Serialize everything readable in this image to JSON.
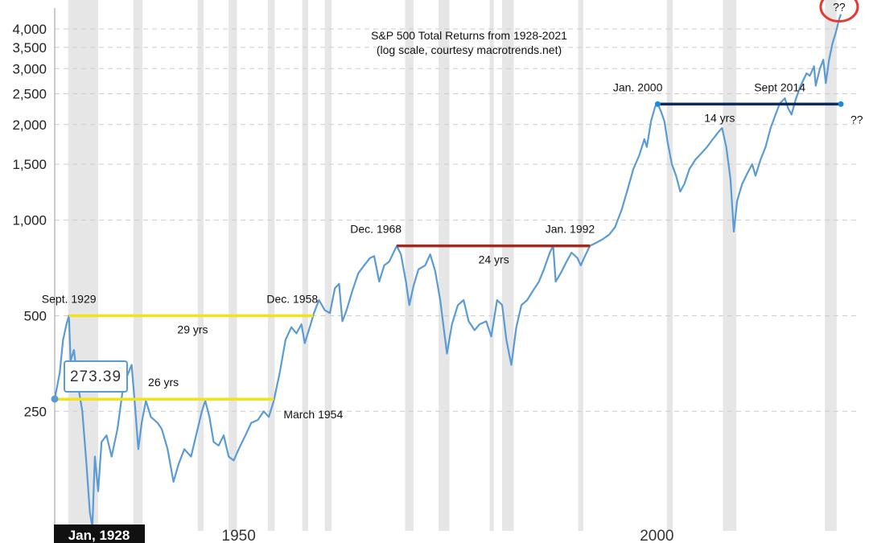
{
  "chart_data": {
    "type": "line",
    "title": "S&P 500 Total Returns from 1928-2021",
    "subtitle": "(log scale, courtesy macrotrends.net)",
    "scale": "log",
    "xlim": [
      1928,
      2022
    ],
    "ylim": [
      105,
      4600
    ],
    "y_ticks": [
      {
        "value": 250,
        "label": "250"
      },
      {
        "value": 500,
        "label": "500"
      },
      {
        "value": 1000,
        "label": "1,000"
      },
      {
        "value": 1500,
        "label": "1,500"
      },
      {
        "value": 2000,
        "label": "2,000"
      },
      {
        "value": 2500,
        "label": "2,500"
      },
      {
        "value": 3000,
        "label": "3,000"
      },
      {
        "value": 3500,
        "label": "3,500"
      },
      {
        "value": 4000,
        "label": "4,000"
      }
    ],
    "x_ticks": [
      {
        "value": 1950,
        "label": "1950"
      },
      {
        "value": 2000,
        "label": "2000"
      }
    ],
    "start_label": "Jan, 1928",
    "tooltip": {
      "x": 1928.0,
      "y": 273.39,
      "label": "273.39"
    },
    "recessions": [
      [
        1929.6,
        1933.2
      ],
      [
        1937.4,
        1938.5
      ],
      [
        1945.1,
        1945.8
      ],
      [
        1948.8,
        1949.8
      ],
      [
        1953.5,
        1954.3
      ],
      [
        1957.6,
        1958.3
      ],
      [
        1960.3,
        1961.1
      ],
      [
        1969.9,
        1970.9
      ],
      [
        1973.9,
        1975.2
      ],
      [
        1980.0,
        1980.5
      ],
      [
        1981.5,
        1982.9
      ],
      [
        1990.6,
        1991.2
      ],
      [
        2001.2,
        2001.9
      ],
      [
        2007.9,
        2009.5
      ],
      [
        2020.1,
        2021.5
      ]
    ],
    "series": [
      {
        "color": "#5b9bd5",
        "points": [
          [
            1928.0,
            273
          ],
          [
            1928.6,
            330
          ],
          [
            1929.0,
            420
          ],
          [
            1929.4,
            470
          ],
          [
            1929.7,
            500
          ],
          [
            1929.9,
            360
          ],
          [
            1930.3,
            390
          ],
          [
            1930.8,
            300
          ],
          [
            1931.3,
            250
          ],
          [
            1931.8,
            170
          ],
          [
            1932.2,
            120
          ],
          [
            1932.5,
            108
          ],
          [
            1932.8,
            180
          ],
          [
            1933.2,
            140
          ],
          [
            1933.6,
            200
          ],
          [
            1934.2,
            210
          ],
          [
            1934.8,
            180
          ],
          [
            1935.5,
            220
          ],
          [
            1936.2,
            300
          ],
          [
            1936.8,
            330
          ],
          [
            1937.2,
            350
          ],
          [
            1937.6,
            260
          ],
          [
            1938.0,
            190
          ],
          [
            1938.4,
            230
          ],
          [
            1938.9,
            270
          ],
          [
            1939.5,
            240
          ],
          [
            1940.3,
            230
          ],
          [
            1940.8,
            220
          ],
          [
            1941.5,
            190
          ],
          [
            1942.2,
            150
          ],
          [
            1942.8,
            170
          ],
          [
            1943.5,
            190
          ],
          [
            1944.3,
            180
          ],
          [
            1945.0,
            215
          ],
          [
            1945.6,
            250
          ],
          [
            1946.0,
            270
          ],
          [
            1946.5,
            240
          ],
          [
            1947.0,
            200
          ],
          [
            1947.6,
            195
          ],
          [
            1948.2,
            210
          ],
          [
            1948.8,
            180
          ],
          [
            1949.4,
            175
          ],
          [
            1950.0,
            190
          ],
          [
            1950.8,
            210
          ],
          [
            1951.5,
            230
          ],
          [
            1952.3,
            235
          ],
          [
            1953.0,
            250
          ],
          [
            1953.6,
            240
          ],
          [
            1954.2,
            270
          ],
          [
            1954.9,
            330
          ],
          [
            1955.6,
            420
          ],
          [
            1956.3,
            460
          ],
          [
            1956.9,
            440
          ],
          [
            1957.5,
            470
          ],
          [
            1957.9,
            410
          ],
          [
            1958.5,
            460
          ],
          [
            1959.0,
            510
          ],
          [
            1959.6,
            560
          ],
          [
            1960.3,
            520
          ],
          [
            1960.9,
            510
          ],
          [
            1961.5,
            610
          ],
          [
            1962.0,
            630
          ],
          [
            1962.4,
            480
          ],
          [
            1962.9,
            520
          ],
          [
            1963.6,
            600
          ],
          [
            1964.3,
            680
          ],
          [
            1965.0,
            720
          ],
          [
            1965.7,
            760
          ],
          [
            1966.2,
            770
          ],
          [
            1966.8,
            640
          ],
          [
            1967.4,
            720
          ],
          [
            1968.0,
            740
          ],
          [
            1968.9,
            830
          ],
          [
            1969.4,
            780
          ],
          [
            1970.0,
            640
          ],
          [
            1970.4,
            540
          ],
          [
            1970.9,
            620
          ],
          [
            1971.5,
            700
          ],
          [
            1972.3,
            720
          ],
          [
            1972.9,
            780
          ],
          [
            1973.5,
            690
          ],
          [
            1974.1,
            560
          ],
          [
            1974.6,
            440
          ],
          [
            1974.9,
            380
          ],
          [
            1975.5,
            470
          ],
          [
            1976.2,
            540
          ],
          [
            1976.9,
            560
          ],
          [
            1977.5,
            480
          ],
          [
            1978.2,
            450
          ],
          [
            1978.8,
            470
          ],
          [
            1979.6,
            480
          ],
          [
            1980.2,
            430
          ],
          [
            1980.9,
            560
          ],
          [
            1981.5,
            540
          ],
          [
            1982.0,
            420
          ],
          [
            1982.6,
            350
          ],
          [
            1983.2,
            460
          ],
          [
            1983.8,
            540
          ],
          [
            1984.5,
            560
          ],
          [
            1985.2,
            600
          ],
          [
            1985.9,
            640
          ],
          [
            1986.5,
            700
          ],
          [
            1987.2,
            790
          ],
          [
            1987.6,
            830
          ],
          [
            1987.9,
            640
          ],
          [
            1988.5,
            680
          ],
          [
            1989.2,
            740
          ],
          [
            1989.8,
            790
          ],
          [
            1990.5,
            760
          ],
          [
            1990.9,
            720
          ],
          [
            1991.5,
            780
          ],
          [
            1992.0,
            830
          ],
          [
            1992.8,
            850
          ],
          [
            1993.5,
            870
          ],
          [
            1994.3,
            900
          ],
          [
            1995.0,
            950
          ],
          [
            1995.8,
            1080
          ],
          [
            1996.5,
            1250
          ],
          [
            1997.2,
            1450
          ],
          [
            1997.9,
            1600
          ],
          [
            1998.5,
            1800
          ],
          [
            1998.8,
            1700
          ],
          [
            1999.3,
            2050
          ],
          [
            1999.8,
            2280
          ],
          [
            2000.1,
            2320
          ],
          [
            2000.5,
            2200
          ],
          [
            2000.9,
            2050
          ],
          [
            2001.3,
            1750
          ],
          [
            2001.8,
            1500
          ],
          [
            2002.3,
            1380
          ],
          [
            2002.8,
            1230
          ],
          [
            2003.3,
            1300
          ],
          [
            2003.9,
            1450
          ],
          [
            2004.6,
            1550
          ],
          [
            2005.3,
            1620
          ],
          [
            2006.0,
            1700
          ],
          [
            2006.7,
            1800
          ],
          [
            2007.4,
            1900
          ],
          [
            2007.8,
            1950
          ],
          [
            2008.3,
            1700
          ],
          [
            2008.8,
            1350
          ],
          [
            2009.2,
            920
          ],
          [
            2009.6,
            1150
          ],
          [
            2010.2,
            1300
          ],
          [
            2010.8,
            1400
          ],
          [
            2011.4,
            1500
          ],
          [
            2011.8,
            1380
          ],
          [
            2012.4,
            1550
          ],
          [
            2013.0,
            1700
          ],
          [
            2013.6,
            1950
          ],
          [
            2014.2,
            2150
          ],
          [
            2014.7,
            2330
          ],
          [
            2015.3,
            2420
          ],
          [
            2015.7,
            2250
          ],
          [
            2016.1,
            2150
          ],
          [
            2016.6,
            2400
          ],
          [
            2017.2,
            2650
          ],
          [
            2017.9,
            2900
          ],
          [
            2018.3,
            2850
          ],
          [
            2018.8,
            3050
          ],
          [
            2019.0,
            2650
          ],
          [
            2019.5,
            3000
          ],
          [
            2019.9,
            3200
          ],
          [
            2020.2,
            2700
          ],
          [
            2020.6,
            3200
          ],
          [
            2021.0,
            3600
          ],
          [
            2021.4,
            3900
          ],
          [
            2021.8,
            4300
          ],
          [
            2022.0,
            4450
          ]
        ]
      }
    ],
    "annotations": [
      {
        "text": "Sept. 1929",
        "x": 1929.7,
        "y": 500,
        "pos": "above"
      },
      {
        "text": "Dec. 1958",
        "x": 1958.9,
        "y": 500,
        "pos": "above-left"
      },
      {
        "text": "29 yrs",
        "x": 1944.5,
        "y": 500,
        "pos": "below"
      },
      {
        "text": "26 yrs",
        "x": 1941.0,
        "y": 273,
        "pos": "above"
      },
      {
        "text": "March 1954",
        "x": 1954.2,
        "y": 273,
        "pos": "below-right"
      },
      {
        "text": "Dec. 1968",
        "x": 1968.9,
        "y": 830,
        "pos": "above-left"
      },
      {
        "text": "Jan. 1992",
        "x": 1992.0,
        "y": 830,
        "pos": "above-left"
      },
      {
        "text": "24 yrs",
        "x": 1980.5,
        "y": 830,
        "pos": "below"
      },
      {
        "text": "Jan. 2000",
        "x": 2000.1,
        "y": 2320,
        "pos": "above-left"
      },
      {
        "text": "Sept 2014",
        "x": 2014.7,
        "y": 2320,
        "pos": "above"
      },
      {
        "text": "14 yrs",
        "x": 2007.5,
        "y": 2320,
        "pos": "below"
      },
      {
        "text": "??",
        "x": 2022.0,
        "y": 2320,
        "pos": "below-right"
      },
      {
        "text": "??",
        "x": 2021.8,
        "y": 4300,
        "pos": "circled"
      }
    ],
    "ranges": [
      {
        "x1": 1929.7,
        "x2": 1958.9,
        "y": 500,
        "color": "#f2e21c"
      },
      {
        "x1": 1928.0,
        "x2": 1954.2,
        "y": 273,
        "color": "#f2e21c"
      },
      {
        "x1": 1968.9,
        "x2": 1992.0,
        "y": 830,
        "color": "#a52a1e"
      },
      {
        "x1": 2000.1,
        "x2": 2022.0,
        "y": 2320,
        "color": "#0d2a5c"
      }
    ],
    "grid": true,
    "colors": {
      "line": "#5b9bd5",
      "recession": "#e6e6e6",
      "grid": "#cccccc",
      "circle": "#e53935"
    }
  }
}
